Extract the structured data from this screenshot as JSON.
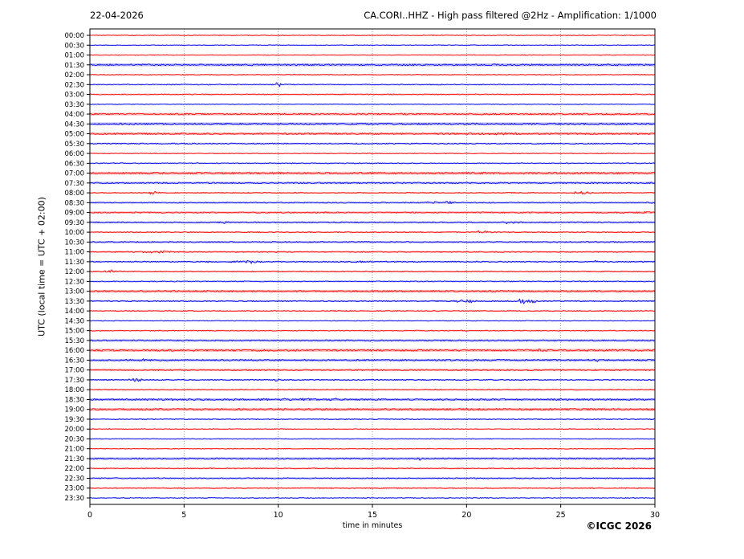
{
  "header": {
    "date": "22-04-2026",
    "title": "CA.CORI..HHZ - High pass filtered @2Hz - Amplification: 1/1000"
  },
  "footer": {
    "copyright": "©ICGC 2026"
  },
  "chart_data": {
    "type": "line",
    "subtype": "helicorder-seismogram",
    "title": "CA.CORI..HHZ - High pass filtered @2Hz - Amplification: 1/1000",
    "date": "22-04-2026",
    "xlabel": "time in minutes",
    "ylabel": "UTC (local time = UTC + 02:00)",
    "x_ticks": [
      0,
      5,
      10,
      15,
      20,
      25,
      30
    ],
    "x_range": [
      0,
      30
    ],
    "grid": "vertical dotted gridlines every 5 minutes",
    "legend": "none",
    "colors": {
      "red_trace": "#ff0000",
      "blue_trace": "#0000ee",
      "grid": "#8a8a8a",
      "frame": "#000000"
    },
    "row_minutes_per_line": 30,
    "rows": [
      {
        "time": "00:00",
        "color": "red",
        "noise": 0.5,
        "events": []
      },
      {
        "time": "00:30",
        "color": "blue",
        "noise": 0.5,
        "events": []
      },
      {
        "time": "01:00",
        "color": "red",
        "noise": 0.5,
        "events": []
      },
      {
        "time": "01:30",
        "color": "blue",
        "noise": 1.1,
        "events": []
      },
      {
        "time": "02:00",
        "color": "red",
        "noise": 0.5,
        "events": []
      },
      {
        "time": "02:30",
        "color": "blue",
        "noise": 0.6,
        "events": [
          {
            "t": 10.0,
            "a": 4.5,
            "w": 0.08
          }
        ]
      },
      {
        "time": "03:00",
        "color": "red",
        "noise": 0.6,
        "events": []
      },
      {
        "time": "03:30",
        "color": "blue",
        "noise": 0.5,
        "events": []
      },
      {
        "time": "04:00",
        "color": "red",
        "noise": 1.0,
        "events": []
      },
      {
        "time": "04:30",
        "color": "blue",
        "noise": 1.1,
        "events": []
      },
      {
        "time": "05:00",
        "color": "red",
        "noise": 1.0,
        "events": [
          {
            "t": 21.7,
            "a": 1.2,
            "w": 0.8
          }
        ]
      },
      {
        "time": "05:30",
        "color": "blue",
        "noise": 0.7,
        "events": [
          {
            "t": 14.2,
            "a": 0.9,
            "w": 0.1
          }
        ]
      },
      {
        "time": "06:00",
        "color": "red",
        "noise": 0.5,
        "events": []
      },
      {
        "time": "06:30",
        "color": "blue",
        "noise": 0.6,
        "events": []
      },
      {
        "time": "07:00",
        "color": "red",
        "noise": 1.1,
        "events": []
      },
      {
        "time": "07:30",
        "color": "blue",
        "noise": 0.9,
        "events": []
      },
      {
        "time": "08:00",
        "color": "red",
        "noise": 0.6,
        "events": [
          {
            "t": 3.4,
            "a": 2.2,
            "w": 0.25
          },
          {
            "t": 26.1,
            "a": 2.2,
            "w": 0.3
          }
        ]
      },
      {
        "time": "08:30",
        "color": "blue",
        "noise": 0.7,
        "events": [
          {
            "t": 18.2,
            "a": 1.8,
            "w": 0.25
          },
          {
            "t": 19.0,
            "a": 1.8,
            "w": 0.3
          },
          {
            "t": 29.8,
            "a": 1.2,
            "w": 0.15
          }
        ]
      },
      {
        "time": "09:00",
        "color": "red",
        "noise": 0.8,
        "events": [
          {
            "t": 28.2,
            "a": 1.2,
            "w": 0.15
          },
          {
            "t": 29.4,
            "a": 1.6,
            "w": 0.4
          }
        ]
      },
      {
        "time": "09:30",
        "color": "blue",
        "noise": 0.8,
        "events": [
          {
            "t": 7.1,
            "a": 1.3,
            "w": 0.2
          },
          {
            "t": 22.3,
            "a": 1.5,
            "w": 0.3
          }
        ]
      },
      {
        "time": "10:00",
        "color": "red",
        "noise": 0.6,
        "events": [
          {
            "t": 20.8,
            "a": 2.2,
            "w": 0.25
          }
        ]
      },
      {
        "time": "10:30",
        "color": "blue",
        "noise": 0.8,
        "events": []
      },
      {
        "time": "11:00",
        "color": "red",
        "noise": 0.7,
        "events": [
          {
            "t": 3.3,
            "a": 1.4,
            "w": 0.8
          }
        ]
      },
      {
        "time": "11:30",
        "color": "blue",
        "noise": 0.7,
        "events": [
          {
            "t": 6.3,
            "a": 1.0,
            "w": 0.08
          },
          {
            "t": 7.8,
            "a": 1.8,
            "w": 0.35
          },
          {
            "t": 8.6,
            "a": 1.8,
            "w": 0.3
          },
          {
            "t": 14.4,
            "a": 1.5,
            "w": 0.3
          },
          {
            "t": 26.8,
            "a": 1.3,
            "w": 0.2
          }
        ]
      },
      {
        "time": "12:00",
        "color": "red",
        "noise": 0.6,
        "events": [
          {
            "t": 1.1,
            "a": 1.8,
            "w": 0.4
          }
        ]
      },
      {
        "time": "12:30",
        "color": "blue",
        "noise": 0.6,
        "events": []
      },
      {
        "time": "13:00",
        "color": "red",
        "noise": 1.0,
        "events": [
          {
            "t": 21.6,
            "a": 1.3,
            "w": 0.2
          }
        ]
      },
      {
        "time": "13:30",
        "color": "blue",
        "noise": 0.7,
        "events": [
          {
            "t": 19.6,
            "a": 1.8,
            "w": 0.15
          },
          {
            "t": 20.2,
            "a": 2.2,
            "w": 0.25
          },
          {
            "t": 22.9,
            "a": 4.0,
            "w": 0.18
          },
          {
            "t": 23.5,
            "a": 2.2,
            "w": 0.25
          }
        ]
      },
      {
        "time": "14:00",
        "color": "red",
        "noise": 0.6,
        "events": []
      },
      {
        "time": "14:30",
        "color": "blue",
        "noise": 0.5,
        "events": []
      },
      {
        "time": "15:00",
        "color": "red",
        "noise": 0.6,
        "events": [
          {
            "t": 12.0,
            "a": 1.2,
            "w": 0.06
          },
          {
            "t": 20.0,
            "a": 1.0,
            "w": 0.15
          },
          {
            "t": 26.3,
            "a": 0.8,
            "w": 0.06
          }
        ]
      },
      {
        "time": "15:30",
        "color": "blue",
        "noise": 0.9,
        "events": []
      },
      {
        "time": "16:00",
        "color": "red",
        "noise": 1.1,
        "events": [
          {
            "t": 23.8,
            "a": 1.0,
            "w": 0.15
          },
          {
            "t": 28.0,
            "a": 1.6,
            "w": 0.25
          }
        ]
      },
      {
        "time": "16:30",
        "color": "blue",
        "noise": 1.0,
        "events": [
          {
            "t": 3.0,
            "a": 1.2,
            "w": 0.6
          },
          {
            "t": 26.8,
            "a": 1.3,
            "w": 0.3
          }
        ]
      },
      {
        "time": "17:00",
        "color": "red",
        "noise": 0.8,
        "events": []
      },
      {
        "time": "17:30",
        "color": "blue",
        "noise": 0.7,
        "events": [
          {
            "t": 2.4,
            "a": 1.8,
            "w": 0.35
          },
          {
            "t": 9.9,
            "a": 1.5,
            "w": 0.08
          },
          {
            "t": 12.9,
            "a": 1.2,
            "w": 0.08
          }
        ]
      },
      {
        "time": "18:00",
        "color": "red",
        "noise": 0.6,
        "events": []
      },
      {
        "time": "18:30",
        "color": "blue",
        "noise": 1.0,
        "events": [
          {
            "t": 4.5,
            "a": 0.9,
            "w": 0.15
          },
          {
            "t": 9.6,
            "a": 2.2,
            "w": 0.3
          },
          {
            "t": 11.1,
            "a": 1.8,
            "w": 0.5
          },
          {
            "t": 13.0,
            "a": 1.8,
            "w": 0.3
          }
        ]
      },
      {
        "time": "19:00",
        "color": "red",
        "noise": 1.1,
        "events": []
      },
      {
        "time": "19:30",
        "color": "blue",
        "noise": 0.6,
        "events": []
      },
      {
        "time": "20:00",
        "color": "red",
        "noise": 0.5,
        "events": []
      },
      {
        "time": "20:30",
        "color": "blue",
        "noise": 0.5,
        "events": []
      },
      {
        "time": "21:00",
        "color": "red",
        "noise": 0.5,
        "events": [
          {
            "t": 8.5,
            "a": 0.7,
            "w": 0.06
          }
        ]
      },
      {
        "time": "21:30",
        "color": "blue",
        "noise": 0.9,
        "events": [
          {
            "t": 17.5,
            "a": 2.0,
            "w": 0.1
          }
        ]
      },
      {
        "time": "22:00",
        "color": "red",
        "noise": 0.6,
        "events": []
      },
      {
        "time": "22:30",
        "color": "blue",
        "noise": 0.7,
        "events": []
      },
      {
        "time": "23:00",
        "color": "red",
        "noise": 0.6,
        "events": []
      },
      {
        "time": "23:30",
        "color": "blue",
        "noise": 0.5,
        "events": []
      }
    ]
  }
}
